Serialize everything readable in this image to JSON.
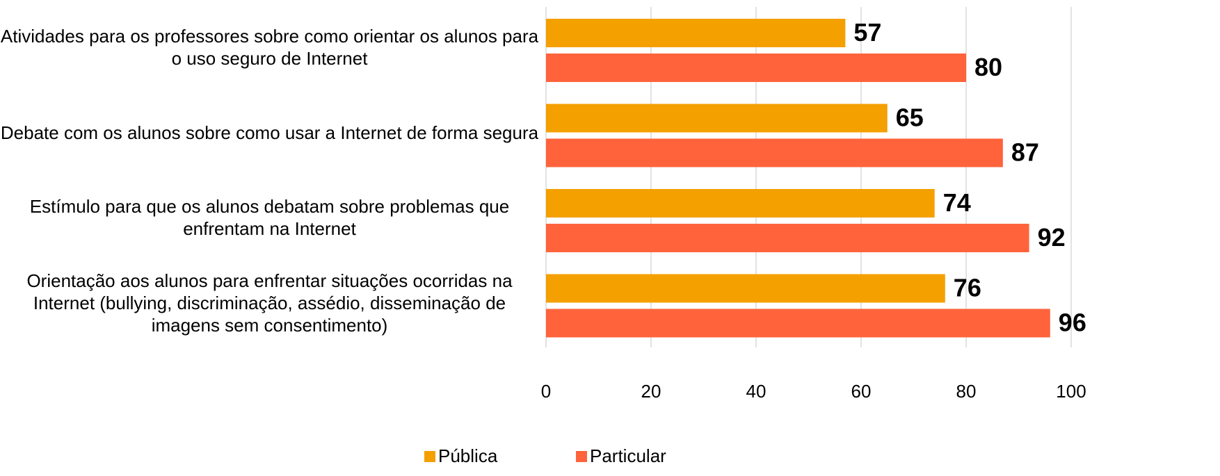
{
  "chart_data": {
    "type": "barh",
    "categories": [
      "Atividades para os professores sobre como orientar os alunos para o uso seguro de Internet",
      "Debate com os alunos sobre como usar a Internet de forma segura",
      "Estímulo para que os alunos debatam sobre problemas que enfrentam na Internet",
      "Orientação aos alunos para enfrentar situações ocorridas na Internet (bullying, discriminação, assédio, disseminação de imagens sem consentimento)"
    ],
    "series": [
      {
        "name": "Pública",
        "color": "#f4a000",
        "values": [
          57,
          65,
          74,
          76
        ]
      },
      {
        "name": "Particular",
        "color": "#ff633b",
        "values": [
          80,
          87,
          92,
          96
        ]
      }
    ],
    "xlim": [
      0,
      100
    ],
    "xticks": [
      0,
      20,
      40,
      60,
      80,
      100
    ],
    "grid": true,
    "legend": "bottom"
  }
}
